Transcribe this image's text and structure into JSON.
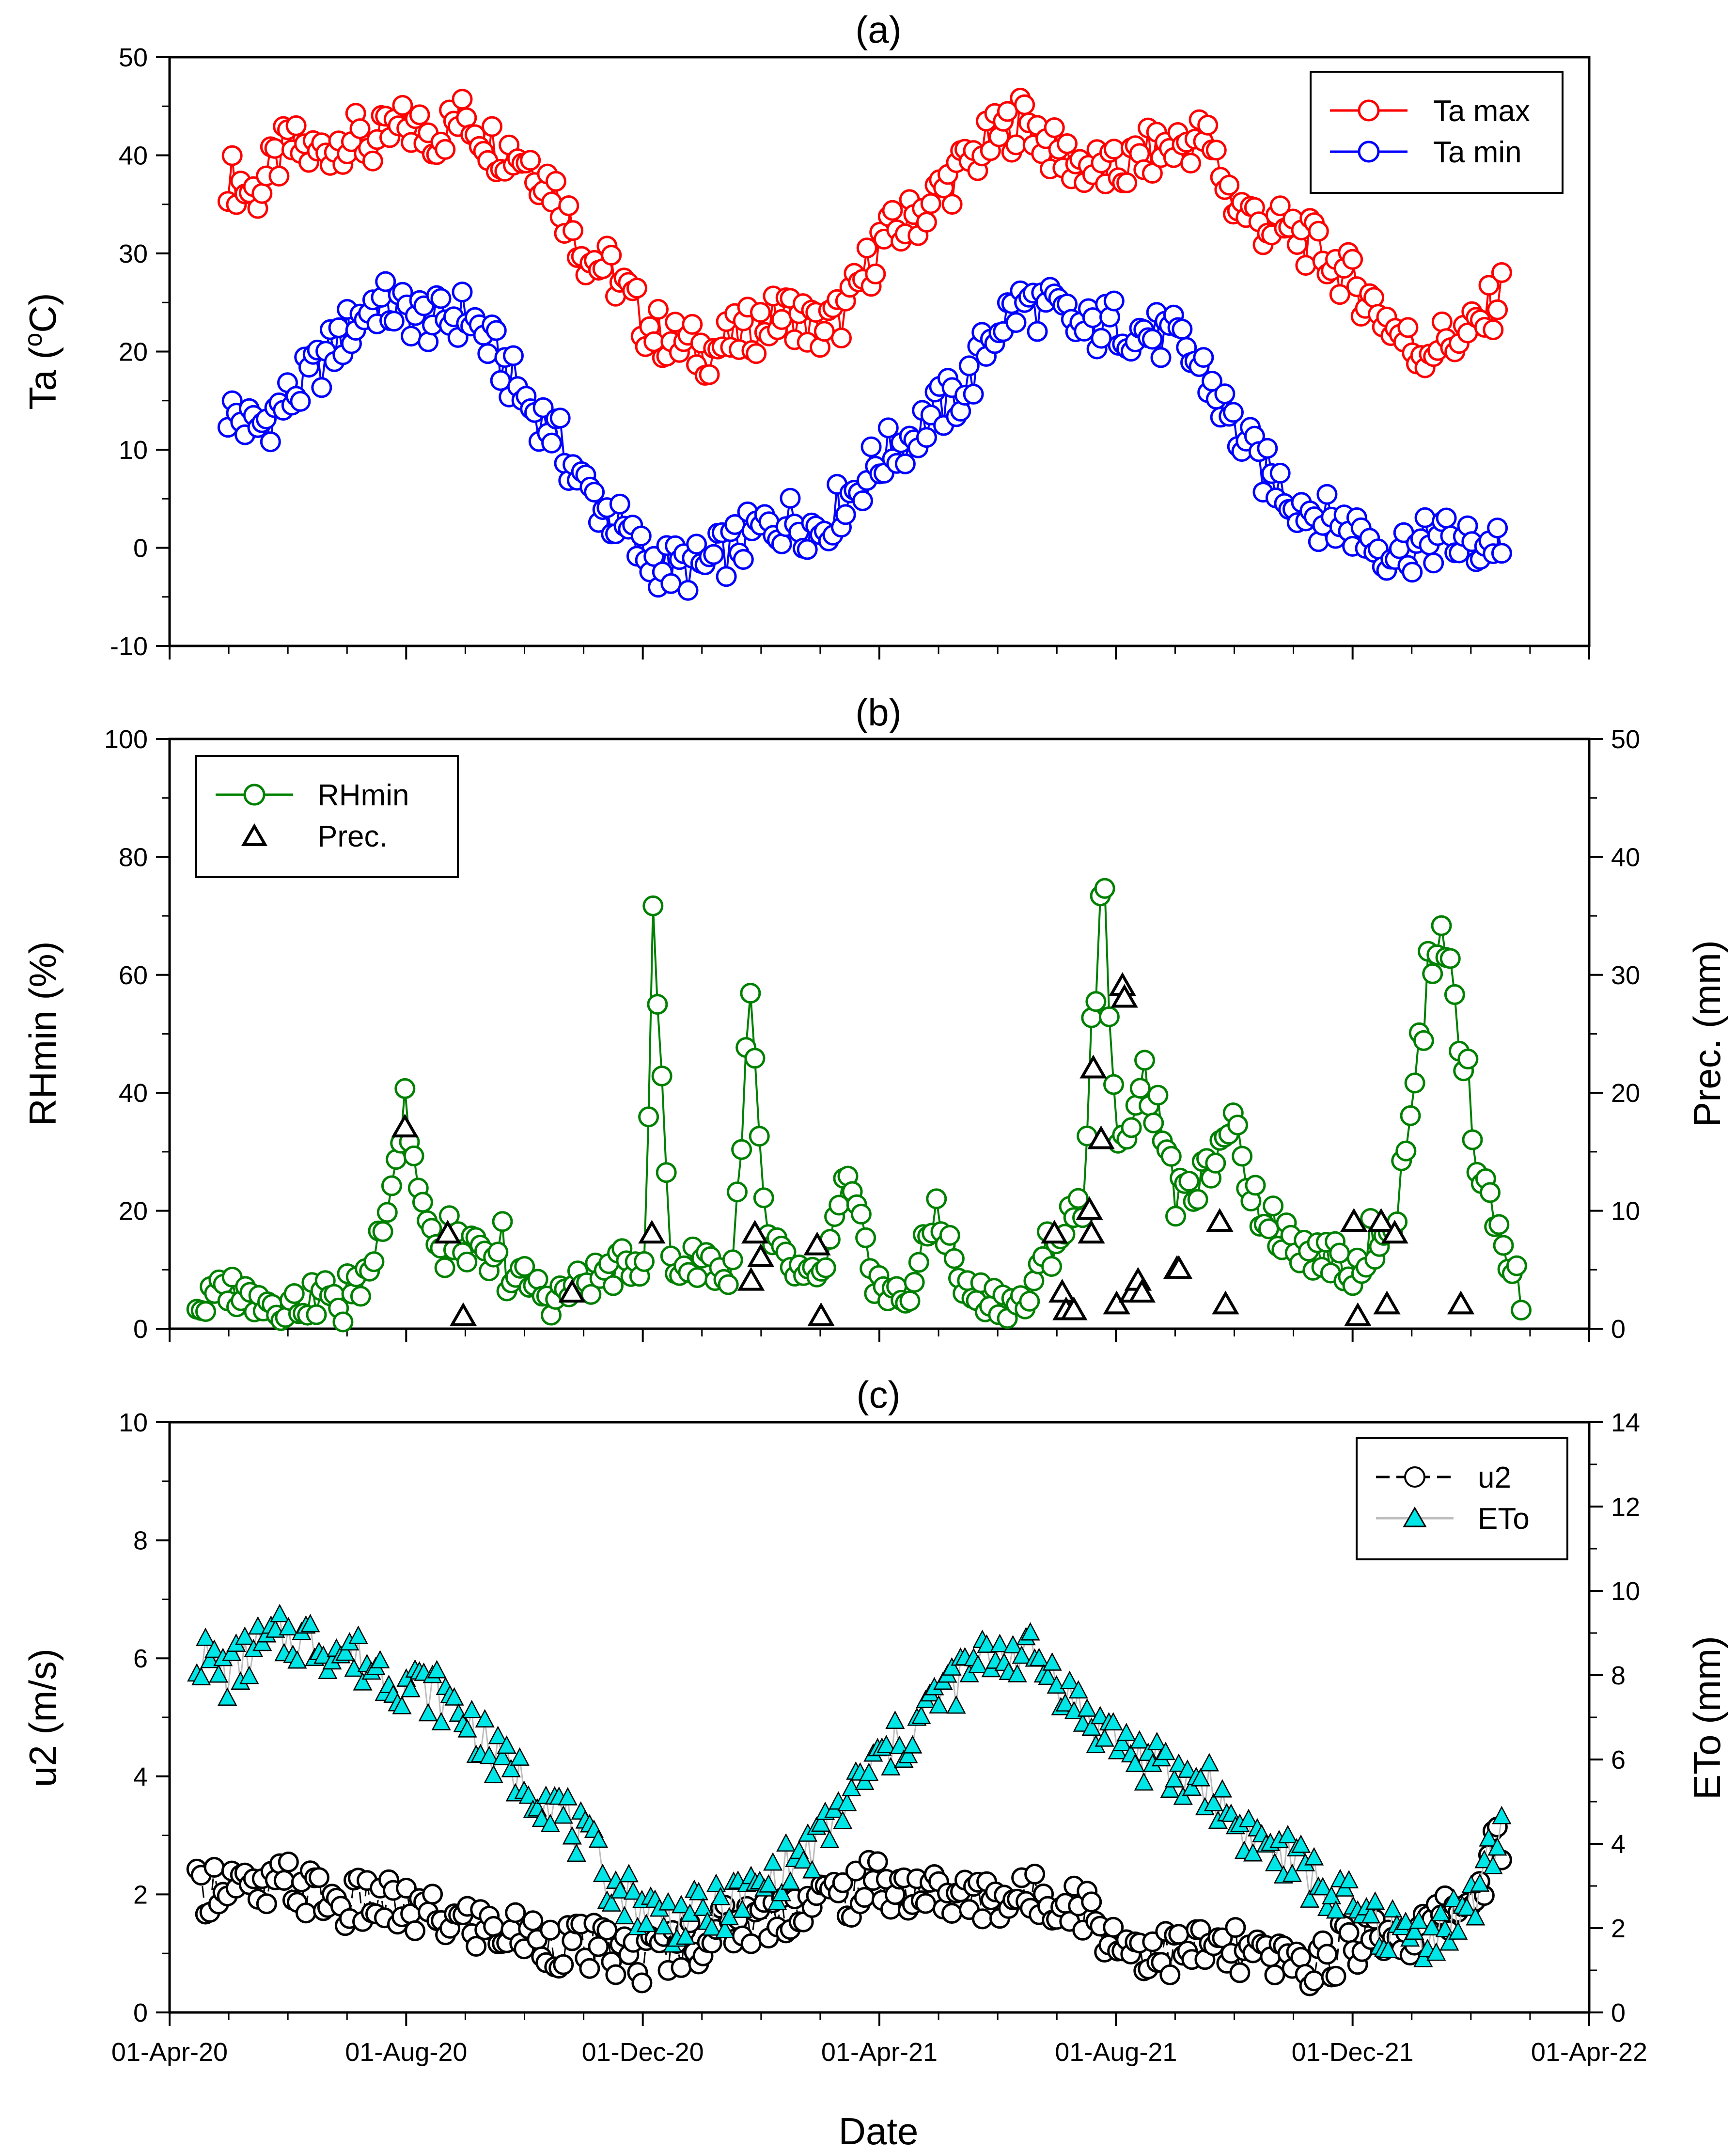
{
  "figure": {
    "xlabel": "Date",
    "x_ticks": [
      "01-Apr-20",
      "01-Aug-20",
      "01-Dec-20",
      "01-Apr-21",
      "01-Aug-21",
      "01-Dec-21",
      "01-Apr-22"
    ]
  },
  "chart_data": [
    {
      "panel": "(a)",
      "type": "line",
      "title": "(a)",
      "xlabel": "",
      "ylabel": "Ta (oC)",
      "ylabel_main": "Ta (",
      "ylabel_sup": "o",
      "ylabel_end": "C)",
      "xlim": [
        "2020-04-01",
        "2022-04-01"
      ],
      "ylim": [
        -10,
        50
      ],
      "y_ticks": [
        "-10",
        "0",
        "10",
        "20",
        "30",
        "40",
        "50"
      ],
      "legend": "top-right",
      "series": [
        {
          "name": "Ta max",
          "color": "#ff0000",
          "marker": "open-circle",
          "x": [
            "2020-05-01",
            "2020-05-15",
            "2020-06-01",
            "2020-06-15",
            "2020-07-01",
            "2020-07-15",
            "2020-08-01",
            "2020-08-15",
            "2020-09-01",
            "2020-09-15",
            "2020-10-01",
            "2020-10-15",
            "2020-11-01",
            "2020-11-15",
            "2020-12-01",
            "2020-12-15",
            "2021-01-01",
            "2021-01-15",
            "2021-02-01",
            "2021-02-15",
            "2021-03-01",
            "2021-03-15",
            "2021-04-01",
            "2021-04-15",
            "2021-05-01",
            "2021-05-15",
            "2021-06-01",
            "2021-06-15",
            "2021-07-01",
            "2021-07-15",
            "2021-08-01",
            "2021-08-15",
            "2021-09-01",
            "2021-09-15",
            "2021-10-01",
            "2021-10-15",
            "2021-11-01",
            "2021-11-15",
            "2021-12-01",
            "2021-12-15",
            "2022-01-01",
            "2022-01-15",
            "2022-02-01",
            "2022-02-15"
          ],
          "values": [
            38,
            36,
            41,
            40,
            42,
            41,
            43,
            42,
            44,
            41,
            40,
            37,
            30,
            28,
            23,
            21,
            20,
            21,
            23,
            24,
            22,
            24,
            31,
            33,
            36,
            39,
            42,
            44,
            40,
            39,
            38,
            40,
            41,
            42,
            35,
            33,
            32,
            30,
            27,
            24,
            20,
            21,
            22,
            26
          ]
        },
        {
          "name": "Ta min",
          "color": "#0000ff",
          "marker": "open-circle",
          "x": [
            "2020-05-01",
            "2020-05-15",
            "2020-06-01",
            "2020-06-15",
            "2020-07-01",
            "2020-07-15",
            "2020-08-01",
            "2020-08-15",
            "2020-09-01",
            "2020-09-15",
            "2020-10-01",
            "2020-10-15",
            "2020-11-01",
            "2020-11-15",
            "2020-12-01",
            "2020-12-15",
            "2021-01-01",
            "2021-01-15",
            "2021-02-01",
            "2021-02-15",
            "2021-03-01",
            "2021-03-15",
            "2021-04-01",
            "2021-04-15",
            "2021-05-01",
            "2021-05-15",
            "2021-06-01",
            "2021-06-15",
            "2021-07-01",
            "2021-07-15",
            "2021-08-01",
            "2021-08-15",
            "2021-09-01",
            "2021-09-15",
            "2021-10-01",
            "2021-10-15",
            "2021-11-01",
            "2021-11-15",
            "2021-12-01",
            "2021-12-15",
            "2022-01-01",
            "2022-01-15",
            "2022-02-01",
            "2022-02-15"
          ],
          "values": [
            14,
            12,
            15,
            18,
            22,
            25,
            24,
            23,
            24,
            20,
            15,
            12,
            6,
            3,
            -1,
            -2,
            -2,
            0,
            2,
            3,
            2,
            5,
            9,
            11,
            14,
            16,
            23,
            25,
            24,
            22,
            23,
            22,
            21,
            18,
            12,
            8,
            5,
            3,
            2,
            0,
            0,
            1,
            0,
            1
          ]
        }
      ]
    },
    {
      "panel": "(b)",
      "type": "line+scatter",
      "title": "(b)",
      "xlabel": "",
      "ylabel": "RHmin (%)",
      "ylabel_right": "Prec. (mm)",
      "xlim": [
        "2020-04-01",
        "2022-04-01"
      ],
      "ylim": [
        0,
        100
      ],
      "ylim_right": [
        0,
        50
      ],
      "y_ticks": [
        "0",
        "20",
        "40",
        "60",
        "80",
        "100"
      ],
      "y_ticks_right": [
        "0",
        "10",
        "20",
        "30",
        "40",
        "50"
      ],
      "legend": "top-left",
      "series": [
        {
          "name": "RHmin",
          "color": "#008000",
          "marker": "open-circle",
          "axis": "left",
          "x": [
            "2020-04-15",
            "2020-05-01",
            "2020-05-15",
            "2020-06-01",
            "2020-06-15",
            "2020-07-01",
            "2020-07-15",
            "2020-07-31",
            "2020-08-15",
            "2020-09-01",
            "2020-09-15",
            "2020-10-01",
            "2020-10-15",
            "2020-11-01",
            "2020-11-15",
            "2020-12-01",
            "2020-12-06",
            "2020-12-15",
            "2021-01-01",
            "2021-01-15",
            "2021-01-25",
            "2021-02-01",
            "2021-02-15",
            "2021-03-01",
            "2021-03-15",
            "2021-04-01",
            "2021-04-15",
            "2021-05-01",
            "2021-05-15",
            "2021-06-01",
            "2021-06-15",
            "2021-07-01",
            "2021-07-15",
            "2021-07-25",
            "2021-08-01",
            "2021-08-15",
            "2021-09-01",
            "2021-09-15",
            "2021-10-01",
            "2021-10-15",
            "2021-11-01",
            "2021-11-15",
            "2021-12-01",
            "2021-12-15",
            "2021-12-25",
            "2022-01-01",
            "2022-01-15",
            "2022-02-01",
            "2022-02-15",
            "2022-02-25"
          ],
          "values": [
            3,
            7,
            5,
            4,
            5,
            3,
            12,
            36,
            12,
            14,
            10,
            8,
            5,
            8,
            10,
            12,
            68,
            10,
            12,
            8,
            57,
            15,
            10,
            7,
            25,
            6,
            5,
            20,
            6,
            5,
            4,
            15,
            22,
            79,
            28,
            44,
            20,
            26,
            32,
            18,
            14,
            12,
            10,
            16,
            20,
            42,
            70,
            30,
            15,
            6
          ]
        },
        {
          "name": "Prec.",
          "color": "#000000",
          "marker": "open-triangle",
          "axis": "right",
          "x": [
            "2020-07-31",
            "2020-08-22",
            "2020-08-30",
            "2020-10-25",
            "2020-12-05",
            "2021-01-25",
            "2021-01-27",
            "2021-01-30",
            "2021-02-28",
            "2021-03-02",
            "2021-06-30",
            "2021-07-04",
            "2021-07-06",
            "2021-07-10",
            "2021-07-18",
            "2021-07-19",
            "2021-07-20",
            "2021-07-24",
            "2021-08-01",
            "2021-08-04",
            "2021-08-05",
            "2021-08-09",
            "2021-08-12",
            "2021-08-14",
            "2021-09-01",
            "2021-09-02",
            "2021-09-23",
            "2021-09-26",
            "2021-12-01",
            "2021-12-03",
            "2021-12-15",
            "2021-12-18",
            "2021-12-22",
            "2022-01-25"
          ],
          "values": [
            17,
            8,
            1,
            3,
            8,
            4,
            8,
            6,
            7,
            1,
            8,
            3,
            1.5,
            1.5,
            10,
            8,
            22,
            16,
            2,
            29,
            28,
            3,
            4,
            3,
            5,
            5,
            9,
            2,
            9,
            1,
            9,
            2,
            8,
            2
          ]
        }
      ]
    },
    {
      "panel": "(c)",
      "type": "line+scatter",
      "title": "(c)",
      "xlabel": "Date",
      "ylabel": "u2 (m/s)",
      "ylabel_right": "ETo (mm)",
      "xlim": [
        "2020-04-01",
        "2022-04-01"
      ],
      "ylim": [
        0,
        10
      ],
      "ylim_right": [
        0,
        14
      ],
      "y_ticks": [
        "0",
        "2",
        "4",
        "6",
        "8",
        "10"
      ],
      "y_ticks_right": [
        "0",
        "2",
        "4",
        "6",
        "8",
        "10",
        "12",
        "14"
      ],
      "legend": "top-right",
      "series": [
        {
          "name": "u2",
          "color": "#000000",
          "marker": "open-circle",
          "line": "dashed",
          "axis": "left",
          "x": [
            "2020-04-15",
            "2020-05-01",
            "2020-05-15",
            "2020-06-01",
            "2020-06-15",
            "2020-07-01",
            "2020-07-15",
            "2020-08-01",
            "2020-08-15",
            "2020-09-01",
            "2020-09-15",
            "2020-10-01",
            "2020-10-15",
            "2020-11-01",
            "2020-11-15",
            "2020-12-01",
            "2020-12-15",
            "2021-01-01",
            "2021-01-15",
            "2021-02-01",
            "2021-02-15",
            "2021-03-01",
            "2021-03-15",
            "2021-04-01",
            "2021-04-15",
            "2021-05-01",
            "2021-05-15",
            "2021-06-01",
            "2021-06-15",
            "2021-07-01",
            "2021-07-15",
            "2021-08-01",
            "2021-08-15",
            "2021-09-01",
            "2021-09-15",
            "2021-10-01",
            "2021-10-15",
            "2021-11-01",
            "2021-11-15",
            "2021-12-01",
            "2021-12-15",
            "2022-01-01",
            "2022-01-15",
            "2022-02-01",
            "2022-02-15"
          ],
          "values": [
            2.0,
            2.3,
            1.9,
            2.2,
            2.0,
            1.8,
            1.9,
            1.7,
            1.6,
            1.5,
            1.4,
            1.3,
            1.2,
            1.1,
            1.0,
            0.9,
            1.1,
            1.3,
            1.5,
            1.6,
            1.8,
            1.9,
            2.0,
            2.2,
            2.1,
            2.0,
            1.9,
            2.0,
            1.9,
            2.0,
            1.8,
            1.2,
            1.1,
            1.0,
            1.1,
            1.0,
            0.9,
            0.8,
            0.9,
            1.2,
            1.4,
            1.3,
            1.6,
            2.0,
            3.0
          ]
        },
        {
          "name": "ETo",
          "color": "#00e5e5",
          "marker": "filled-triangle",
          "line": "solid-gray",
          "axis": "right",
          "x": [
            "2020-04-15",
            "2020-05-01",
            "2020-05-15",
            "2020-06-01",
            "2020-06-15",
            "2020-07-01",
            "2020-07-15",
            "2020-08-01",
            "2020-08-15",
            "2020-09-01",
            "2020-09-15",
            "2020-10-01",
            "2020-10-15",
            "2020-11-01",
            "2020-11-15",
            "2020-12-01",
            "2020-12-15",
            "2021-01-01",
            "2021-01-15",
            "2021-02-01",
            "2021-02-15",
            "2021-03-01",
            "2021-03-15",
            "2021-04-01",
            "2021-04-15",
            "2021-05-01",
            "2021-05-15",
            "2021-06-01",
            "2021-06-15",
            "2021-07-01",
            "2021-07-15",
            "2021-08-01",
            "2021-08-15",
            "2021-09-01",
            "2021-09-15",
            "2021-10-01",
            "2021-10-15",
            "2021-11-01",
            "2021-11-15",
            "2021-12-01",
            "2021-12-15",
            "2022-01-01",
            "2022-01-15",
            "2022-02-01",
            "2022-02-15"
          ],
          "values": [
            8.5,
            8.0,
            8.6,
            8.9,
            8.8,
            8.5,
            8.2,
            7.8,
            7.6,
            7.0,
            6.0,
            5.5,
            5.0,
            4.0,
            3.0,
            2.5,
            2.2,
            2.3,
            2.6,
            3.0,
            3.5,
            4.0,
            5.0,
            6.0,
            6.5,
            7.5,
            8.0,
            8.6,
            8.5,
            8.0,
            7.0,
            6.5,
            6.0,
            5.5,
            5.5,
            4.5,
            4.0,
            3.5,
            3.0,
            2.4,
            2.0,
            1.8,
            2.0,
            2.6,
            4.5
          ]
        }
      ]
    }
  ]
}
